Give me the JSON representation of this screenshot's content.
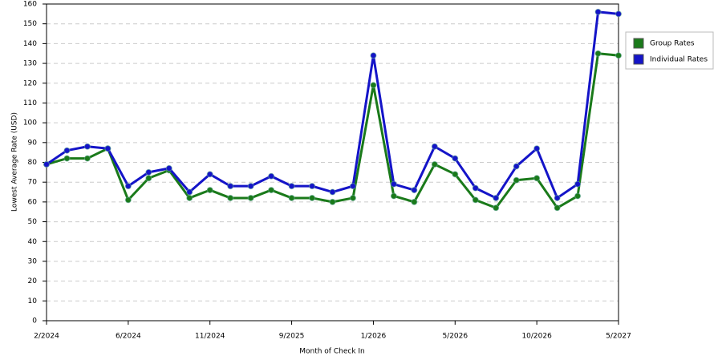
{
  "chart_data": {
    "type": "line",
    "x_label": "Month of Check In",
    "y_label": "Lowest Average Rate (USD)",
    "categories": [
      "2/2024",
      null,
      null,
      null,
      "6/2024",
      null,
      null,
      null,
      "11/2024",
      null,
      null,
      null,
      "9/2025",
      null,
      null,
      null,
      "1/2026",
      null,
      null,
      null,
      "5/2026",
      null,
      null,
      null,
      "10/2026",
      null,
      null,
      null,
      "5/2027"
    ],
    "series": [
      {
        "name": "Group Rates",
        "color": "#1a7a1a",
        "values": [
          79,
          82,
          82,
          87,
          61,
          72,
          76,
          62,
          66,
          62,
          62,
          66,
          62,
          62,
          60,
          62,
          119,
          63,
          60,
          79,
          74,
          61,
          57,
          71,
          72,
          57,
          63,
          135,
          134
        ]
      },
      {
        "name": "Individual Rates",
        "color": "#1414c8",
        "values": [
          79,
          86,
          88,
          87,
          68,
          75,
          77,
          65,
          74,
          68,
          68,
          73,
          68,
          68,
          65,
          68,
          134,
          69,
          66,
          88,
          82,
          67,
          62,
          78,
          87,
          62,
          69,
          156,
          155
        ]
      }
    ],
    "ylim": [
      0,
      160
    ],
    "yticks": [
      0,
      10,
      20,
      30,
      40,
      50,
      60,
      70,
      80,
      90,
      100,
      110,
      120,
      130,
      140,
      150,
      160
    ],
    "grid": true,
    "legend": "right"
  }
}
